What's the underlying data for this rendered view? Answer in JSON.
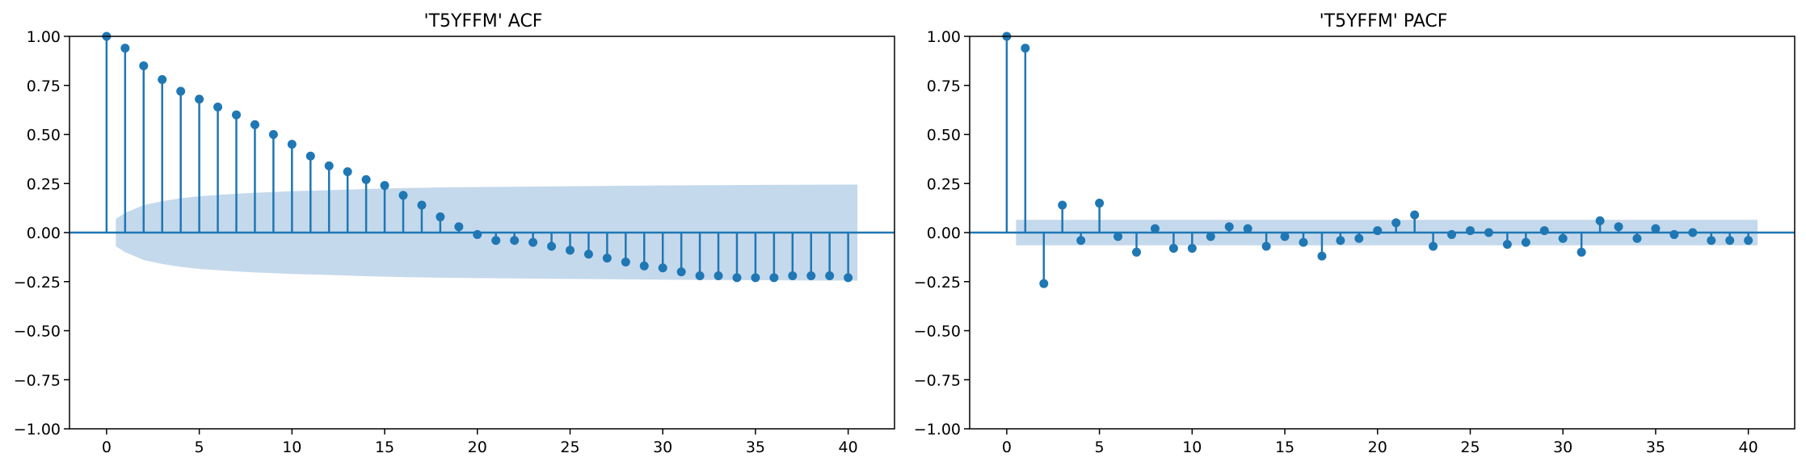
{
  "colors": {
    "stem": "#1f77b4",
    "confidence_band": "#c5d9ec",
    "axis": "#000000",
    "background": "#ffffff"
  },
  "chart_data": [
    {
      "type": "stem",
      "title": "'T5YFFM' ACF",
      "xlabel": "",
      "ylabel": "",
      "xlim": [
        -2,
        42.5
      ],
      "ylim": [
        -1.0,
        1.0
      ],
      "xticks": [
        0,
        5,
        10,
        15,
        20,
        25,
        30,
        35,
        40
      ],
      "yticks": [
        -1.0,
        -0.75,
        -0.5,
        -0.25,
        0.0,
        0.25,
        0.5,
        0.75,
        1.0
      ],
      "xtick_labels": [
        "0",
        "5",
        "10",
        "15",
        "20",
        "25",
        "30",
        "35",
        "40"
      ],
      "ytick_labels": [
        "−1.00",
        "−0.75",
        "−0.50",
        "−0.25",
        "0.00",
        "0.25",
        "0.50",
        "0.75",
        "1.00"
      ],
      "grid": false,
      "lags": [
        0,
        1,
        2,
        3,
        4,
        5,
        6,
        7,
        8,
        9,
        10,
        11,
        12,
        13,
        14,
        15,
        16,
        17,
        18,
        19,
        20,
        21,
        22,
        23,
        24,
        25,
        26,
        27,
        28,
        29,
        30,
        31,
        32,
        33,
        34,
        35,
        36,
        37,
        38,
        39,
        40
      ],
      "values": [
        1.0,
        0.94,
        0.85,
        0.78,
        0.72,
        0.68,
        0.64,
        0.6,
        0.55,
        0.5,
        0.45,
        0.39,
        0.34,
        0.31,
        0.27,
        0.24,
        0.19,
        0.14,
        0.08,
        0.03,
        -0.01,
        -0.04,
        -0.04,
        -0.05,
        -0.07,
        -0.09,
        -0.11,
        -0.13,
        -0.15,
        -0.17,
        -0.18,
        -0.2,
        -0.22,
        -0.22,
        -0.23,
        -0.23,
        -0.23,
        -0.22,
        -0.22,
        -0.22,
        -0.23
      ],
      "confidence_band": {
        "x": [
          0.5,
          1,
          2,
          3,
          4,
          5,
          6,
          7,
          8,
          9,
          10,
          12,
          14,
          16,
          18,
          20,
          25,
          30,
          35,
          40.5
        ],
        "upper": [
          0.07,
          0.1,
          0.14,
          0.16,
          0.175,
          0.185,
          0.192,
          0.198,
          0.203,
          0.207,
          0.211,
          0.216,
          0.222,
          0.227,
          0.23,
          0.232,
          0.236,
          0.24,
          0.243,
          0.245
        ],
        "lower": [
          -0.07,
          -0.1,
          -0.14,
          -0.16,
          -0.175,
          -0.185,
          -0.192,
          -0.198,
          -0.203,
          -0.207,
          -0.211,
          -0.216,
          -0.222,
          -0.227,
          -0.23,
          -0.232,
          -0.236,
          -0.24,
          -0.243,
          -0.245
        ]
      }
    },
    {
      "type": "stem",
      "title": "'T5YFFM' PACF",
      "xlabel": "",
      "ylabel": "",
      "xlim": [
        -2,
        42.5
      ],
      "ylim": [
        -1.0,
        1.0
      ],
      "xticks": [
        0,
        5,
        10,
        15,
        20,
        25,
        30,
        35,
        40
      ],
      "yticks": [
        -1.0,
        -0.75,
        -0.5,
        -0.25,
        0.0,
        0.25,
        0.5,
        0.75,
        1.0
      ],
      "xtick_labels": [
        "0",
        "5",
        "10",
        "15",
        "20",
        "25",
        "30",
        "35",
        "40"
      ],
      "ytick_labels": [
        "−1.00",
        "−0.75",
        "−0.50",
        "−0.25",
        "0.00",
        "0.25",
        "0.50",
        "0.75",
        "1.00"
      ],
      "grid": false,
      "lags": [
        0,
        1,
        2,
        3,
        4,
        5,
        6,
        7,
        8,
        9,
        10,
        11,
        12,
        13,
        14,
        15,
        16,
        17,
        18,
        19,
        20,
        21,
        22,
        23,
        24,
        25,
        26,
        27,
        28,
        29,
        30,
        31,
        32,
        33,
        34,
        35,
        36,
        37,
        38,
        39,
        40
      ],
      "values": [
        1.0,
        0.94,
        -0.26,
        0.14,
        -0.04,
        0.15,
        -0.02,
        -0.1,
        0.02,
        -0.08,
        -0.08,
        -0.02,
        0.03,
        0.02,
        -0.07,
        -0.02,
        -0.05,
        -0.12,
        -0.04,
        -0.03,
        0.01,
        0.05,
        0.09,
        -0.07,
        -0.01,
        0.01,
        0.0,
        -0.06,
        -0.05,
        0.01,
        -0.03,
        -0.1,
        0.06,
        0.03,
        -0.03,
        0.02,
        -0.01,
        0.0,
        -0.04,
        -0.04,
        -0.04
      ],
      "confidence_band": {
        "x": [
          0.5,
          40.5
        ],
        "upper": [
          0.065,
          0.065
        ],
        "lower": [
          -0.065,
          -0.065
        ]
      }
    }
  ]
}
